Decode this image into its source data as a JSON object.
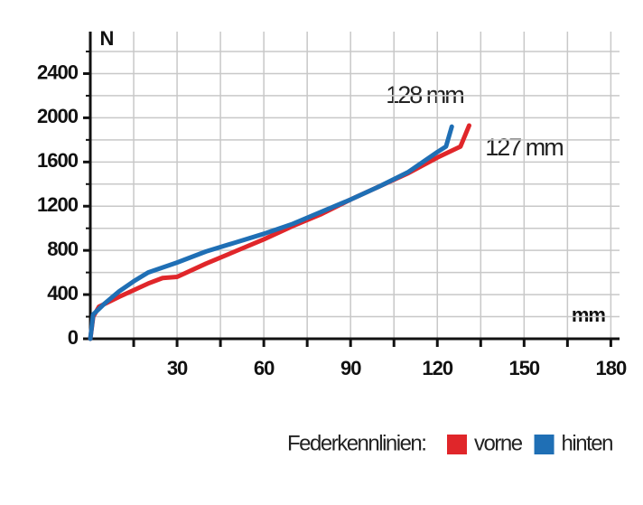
{
  "chart_data": {
    "type": "line",
    "x_label": "mm",
    "y_label": "N",
    "xlim": [
      0,
      183
    ],
    "ylim": [
      0,
      2780
    ],
    "xticks": [
      30,
      60,
      90,
      120,
      150,
      180
    ],
    "xminorticks": [
      15,
      45,
      75,
      105,
      135,
      165
    ],
    "yticks": [
      0,
      400,
      800,
      1200,
      1600,
      2000,
      2400
    ],
    "yminorticks": [
      200,
      600,
      1000,
      1400,
      1800,
      2200,
      2600
    ],
    "grid": true,
    "series": [
      {
        "name": "vorne",
        "color": "#e0262a",
        "x": [
          0,
          1,
          3,
          10,
          20,
          25,
          30,
          40,
          50,
          60,
          70,
          80,
          90,
          100,
          110,
          120,
          128,
          131
        ],
        "values": [
          0,
          200,
          290,
          380,
          500,
          550,
          560,
          680,
          790,
          900,
          1020,
          1130,
          1260,
          1380,
          1500,
          1640,
          1740,
          1930
        ]
      },
      {
        "name": "hinten",
        "color": "#1f6fb5",
        "x": [
          0,
          1,
          5,
          10,
          15,
          20,
          30,
          40,
          50,
          60,
          70,
          80,
          90,
          100,
          110,
          120,
          123,
          125
        ],
        "values": [
          0,
          220,
          320,
          430,
          520,
          600,
          690,
          790,
          870,
          950,
          1040,
          1150,
          1260,
          1380,
          1510,
          1690,
          1740,
          1920
        ]
      }
    ],
    "annotations": [
      "128 mm",
      "127 mm"
    ],
    "legend_title": "Federkennlinien:"
  }
}
